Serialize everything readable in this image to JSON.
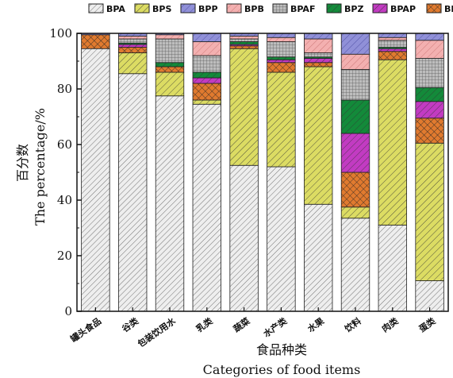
{
  "chart_data": {
    "type": "bar",
    "stacked": true,
    "xlabel": "食品种类",
    "xlabel_en": "Categories of food items",
    "ylabel": "百分数",
    "ylabel_en": "The percentage/%",
    "ylim": [
      0,
      100
    ],
    "yticks": [
      0,
      20,
      40,
      60,
      80,
      100
    ],
    "legend_position": "top",
    "categories": [
      "罐头食品",
      "谷类",
      "包装饮用水",
      "乳类",
      "蔬菜",
      "水产类",
      "水果",
      "饮料",
      "肉类",
      "蛋类"
    ],
    "series": [
      {
        "name": "BPA",
        "color": "#e6e6e6",
        "pattern": "diag-fine",
        "values": [
          94.5,
          85.5,
          77.5,
          74.5,
          52.5,
          52.0,
          38.5,
          33.5,
          31.0,
          11.0
        ]
      },
      {
        "name": "BPS",
        "color": "#dcdc63",
        "pattern": "diag",
        "values": [
          0.0,
          7.5,
          8.5,
          1.5,
          42.0,
          34.0,
          49.5,
          4.0,
          59.5,
          49.5
        ]
      },
      {
        "name": "BPF",
        "color": "#e07a2f",
        "pattern": "cross",
        "values": [
          5.0,
          2.0,
          2.0,
          6.0,
          1.0,
          3.5,
          1.5,
          12.5,
          3.0,
          9.0
        ]
      },
      {
        "name": "BPAP",
        "color": "#c23bc2",
        "pattern": "diag",
        "values": [
          0.0,
          1.0,
          0.0,
          2.0,
          0.5,
          1.0,
          1.5,
          14.0,
          1.0,
          6.0
        ]
      },
      {
        "name": "BPZ",
        "color": "#138a3a",
        "pattern": "diag",
        "values": [
          0.0,
          0.5,
          1.5,
          2.0,
          1.0,
          1.0,
          0.5,
          12.0,
          0.5,
          5.0
        ]
      },
      {
        "name": "BPAF",
        "color": "#aaaaaa",
        "pattern": "grid",
        "values": [
          0.0,
          1.5,
          8.5,
          6.0,
          1.0,
          5.5,
          1.5,
          11.0,
          2.5,
          10.5
        ]
      },
      {
        "name": "BPB",
        "color": "#f3b0b0",
        "pattern": "diag-pink",
        "values": [
          0.0,
          1.0,
          1.5,
          5.0,
          1.0,
          1.5,
          5.0,
          5.5,
          1.0,
          6.5
        ]
      },
      {
        "name": "BPP",
        "color": "#9090d8",
        "pattern": "diag-blue",
        "values": [
          0.5,
          1.0,
          0.5,
          3.0,
          1.0,
          1.5,
          2.0,
          7.5,
          1.5,
          2.5
        ]
      }
    ]
  },
  "legend": [
    {
      "name": "BPA",
      "color": "#e6e6e6",
      "pattern": "diag-fine"
    },
    {
      "name": "BPS",
      "color": "#dcdc63",
      "pattern": "diag"
    },
    {
      "name": "BPP",
      "color": "#9090d8",
      "pattern": "diag-blue"
    },
    {
      "name": "BPB",
      "color": "#f3b0b0",
      "pattern": "diag-pink"
    },
    {
      "name": "BPAF",
      "color": "#aaaaaa",
      "pattern": "grid"
    },
    {
      "name": "BPZ",
      "color": "#138a3a",
      "pattern": "diag"
    },
    {
      "name": "BPAP",
      "color": "#c23bc2",
      "pattern": "diag"
    },
    {
      "name": "BPF",
      "color": "#e07a2f",
      "pattern": "cross"
    }
  ]
}
